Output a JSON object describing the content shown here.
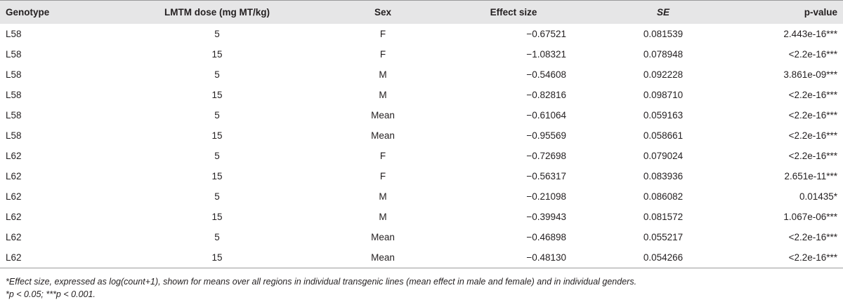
{
  "table": {
    "header": [
      "Genotype",
      "LMTM dose (mg MT/kg)",
      "Sex",
      "Effect size",
      "SE",
      "p-value"
    ],
    "rows": [
      [
        "L58",
        5,
        "F",
        "−0.67521",
        "0.081539",
        "2.443e-16***"
      ],
      [
        "L58",
        15,
        "F",
        "−1.08321",
        "0.078948",
        "<2.2e-16***"
      ],
      [
        "L58",
        5,
        "M",
        "−0.54608",
        "0.092228",
        "3.861e-09***"
      ],
      [
        "L58",
        15,
        "M",
        "−0.82816",
        "0.098710",
        "<2.2e-16***"
      ],
      [
        "L58",
        5,
        "Mean",
        "−0.61064",
        "0.059163",
        "<2.2e-16***"
      ],
      [
        "L58",
        15,
        "Mean",
        "−0.95569",
        "0.058661",
        "<2.2e-16***"
      ],
      [
        "L62",
        5,
        "F",
        "−0.72698",
        "0.079024",
        "<2.2e-16***"
      ],
      [
        "L62",
        15,
        "F",
        "−0.56317",
        "0.083936",
        "2.651e-11***"
      ],
      [
        "L62",
        5,
        "M",
        "−0.21098",
        "0.086082",
        "0.01435*"
      ],
      [
        "L62",
        15,
        "M",
        "−0.39943",
        "0.081572",
        "1.067e-06***"
      ],
      [
        "L62",
        5,
        "Mean",
        "−0.46898",
        "0.055217",
        "<2.2e-16***"
      ],
      [
        "L62",
        15,
        "Mean",
        "−0.48130",
        "0.054266",
        "<2.2e-16***"
      ]
    ],
    "footnotes": [
      "*Effect size, expressed as log(count+1), shown for means over all regions in individual transgenic lines (mean effect in male and female) and in individual genders.",
      "*p < 0.05; ***p < 0.001."
    ]
  }
}
